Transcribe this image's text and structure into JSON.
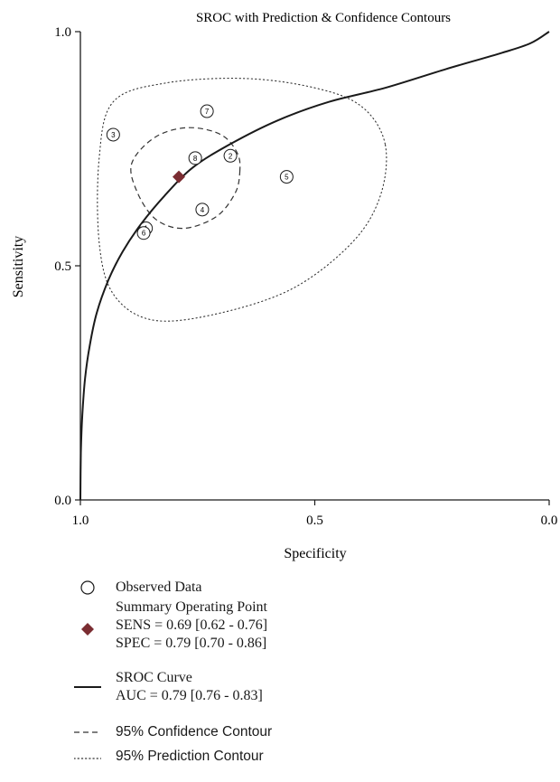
{
  "chart_data": {
    "type": "scatter",
    "title": "SROC with Prediction & Confidence Contours",
    "xlabel": "Specificity",
    "ylabel": "Sensitivity",
    "xlim": [
      1.0,
      0.0
    ],
    "ylim": [
      0.0,
      1.0
    ],
    "x_reversed": true,
    "x_ticks": [
      "1.0",
      "0.5",
      "0.0"
    ],
    "y_ticks": [
      "0.0",
      "0.5",
      "1.0"
    ],
    "grid": false,
    "observed": [
      {
        "label": "1",
        "specificity": 0.86,
        "sensitivity": 0.58
      },
      {
        "label": "2",
        "specificity": 0.68,
        "sensitivity": 0.735
      },
      {
        "label": "3",
        "specificity": 0.93,
        "sensitivity": 0.78
      },
      {
        "label": "4",
        "specificity": 0.74,
        "sensitivity": 0.62
      },
      {
        "label": "5",
        "specificity": 0.56,
        "sensitivity": 0.69
      },
      {
        "label": "6",
        "specificity": 0.865,
        "sensitivity": 0.57
      },
      {
        "label": "7",
        "specificity": 0.73,
        "sensitivity": 0.83
      },
      {
        "label": "8",
        "specificity": 0.755,
        "sensitivity": 0.73
      }
    ],
    "summary_point": {
      "specificity": 0.79,
      "sensitivity": 0.69
    },
    "sroc_curve": [
      {
        "specificity": 1.0,
        "sensitivity": 0.0
      },
      {
        "specificity": 0.999,
        "sensitivity": 0.1
      },
      {
        "specificity": 0.996,
        "sensitivity": 0.18
      },
      {
        "specificity": 0.99,
        "sensitivity": 0.26
      },
      {
        "specificity": 0.98,
        "sensitivity": 0.33
      },
      {
        "specificity": 0.965,
        "sensitivity": 0.4
      },
      {
        "specificity": 0.94,
        "sensitivity": 0.47
      },
      {
        "specificity": 0.91,
        "sensitivity": 0.53
      },
      {
        "specificity": 0.87,
        "sensitivity": 0.59
      },
      {
        "specificity": 0.82,
        "sensitivity": 0.65
      },
      {
        "specificity": 0.76,
        "sensitivity": 0.71
      },
      {
        "specificity": 0.68,
        "sensitivity": 0.76
      },
      {
        "specificity": 0.58,
        "sensitivity": 0.81
      },
      {
        "specificity": 0.47,
        "sensitivity": 0.85
      },
      {
        "specificity": 0.35,
        "sensitivity": 0.88
      },
      {
        "specificity": 0.22,
        "sensitivity": 0.92
      },
      {
        "specificity": 0.1,
        "sensitivity": 0.955
      },
      {
        "specificity": 0.04,
        "sensitivity": 0.975
      },
      {
        "specificity": 0.0,
        "sensitivity": 1.0
      }
    ],
    "confidence_contour": [
      {
        "specificity": 0.66,
        "sensitivity": 0.7
      },
      {
        "specificity": 0.665,
        "sensitivity": 0.74
      },
      {
        "specificity": 0.7,
        "sensitivity": 0.78
      },
      {
        "specificity": 0.77,
        "sensitivity": 0.795
      },
      {
        "specificity": 0.84,
        "sensitivity": 0.775
      },
      {
        "specificity": 0.89,
        "sensitivity": 0.72
      },
      {
        "specificity": 0.88,
        "sensitivity": 0.66
      },
      {
        "specificity": 0.84,
        "sensitivity": 0.6
      },
      {
        "specificity": 0.78,
        "sensitivity": 0.58
      },
      {
        "specificity": 0.71,
        "sensitivity": 0.605
      },
      {
        "specificity": 0.67,
        "sensitivity": 0.655
      }
    ],
    "prediction_contour": [
      {
        "specificity": 0.35,
        "sensitivity": 0.76
      },
      {
        "specificity": 0.4,
        "sensitivity": 0.84
      },
      {
        "specificity": 0.5,
        "sensitivity": 0.88
      },
      {
        "specificity": 0.65,
        "sensitivity": 0.9
      },
      {
        "specificity": 0.82,
        "sensitivity": 0.89
      },
      {
        "specificity": 0.93,
        "sensitivity": 0.85
      },
      {
        "specificity": 0.96,
        "sensitivity": 0.73
      },
      {
        "specificity": 0.96,
        "sensitivity": 0.55
      },
      {
        "specificity": 0.93,
        "sensitivity": 0.44
      },
      {
        "specificity": 0.85,
        "sensitivity": 0.385
      },
      {
        "specificity": 0.72,
        "sensitivity": 0.395
      },
      {
        "specificity": 0.55,
        "sensitivity": 0.45
      },
      {
        "specificity": 0.42,
        "sensitivity": 0.55
      },
      {
        "specificity": 0.36,
        "sensitivity": 0.65
      }
    ],
    "legend_position": "bottom-left",
    "legend": [
      {
        "key": "observed",
        "lines": [
          "Observed Data"
        ]
      },
      {
        "key": "summary",
        "lines": [
          "Summary Operating Point",
          "SENS = 0.69 [0.62 - 0.76]",
          "SPEC = 0.79 [0.70 - 0.86]"
        ]
      },
      {
        "key": "sroc",
        "lines": [
          "SROC Curve",
          "AUC = 0.79 [0.76 - 0.83]"
        ]
      },
      {
        "key": "confidence",
        "lines": [
          "95% Confidence Contour"
        ]
      },
      {
        "key": "prediction",
        "lines": [
          "95% Prediction Contour"
        ]
      }
    ],
    "colors": {
      "axis": "#1a1a1a",
      "curve": "#1a1a1a",
      "summary_point": "#7b2d32",
      "contour": "#333333"
    }
  }
}
